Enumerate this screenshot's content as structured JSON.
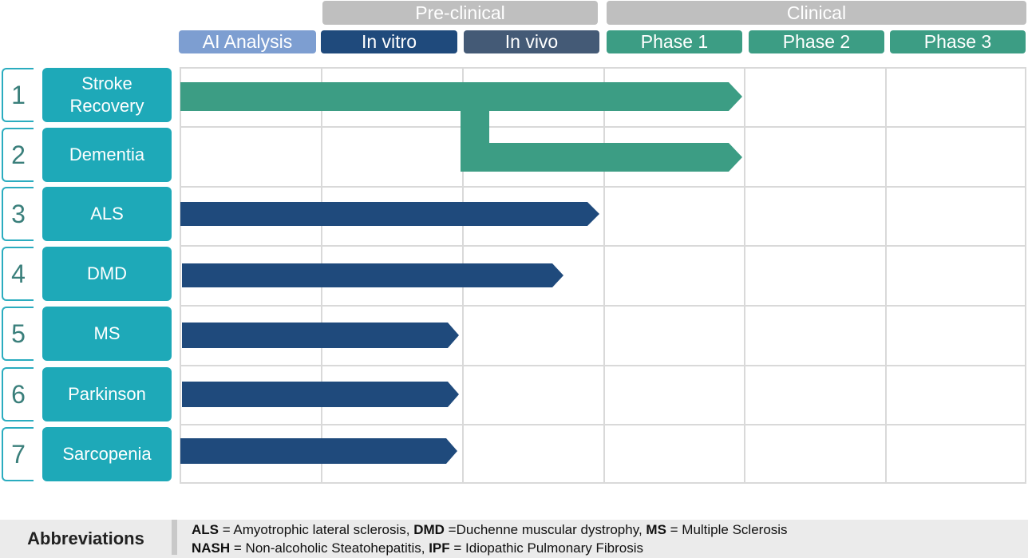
{
  "groups": {
    "preclinical": "Pre-clinical",
    "clinical": "Clinical"
  },
  "phases": [
    "AI Analysis",
    "In vitro",
    "In vivo",
    "Phase 1",
    "Phase 2",
    "Phase 3"
  ],
  "colors": {
    "ai_analysis": "#7d9ed1",
    "in_vitro": "#1f4a7c",
    "in_vivo": "#445a76",
    "clinical_phase": "#3c9d84",
    "group_header": "#bfbfbf",
    "row_label": "#1ea9b8",
    "green_bar": "#3c9d84",
    "blue_bar": "#1f4a7c"
  },
  "rows": [
    {
      "number": "1",
      "label_line1": "Stroke",
      "label_line2": "Recovery",
      "bar_color": "green",
      "end_position": "Phase 1 (end)"
    },
    {
      "number": "2",
      "label_line1": "Dementia",
      "label_line2": "",
      "bar_color": "green",
      "end_position": "Phase 1 (end)"
    },
    {
      "number": "3",
      "label_line1": "ALS",
      "label_line2": "",
      "bar_color": "blue",
      "end_position": "In vivo (end)"
    },
    {
      "number": "4",
      "label_line1": "DMD",
      "label_line2": "",
      "bar_color": "blue",
      "end_position": "In vivo (~70%)"
    },
    {
      "number": "5",
      "label_line1": "MS",
      "label_line2": "",
      "bar_color": "blue",
      "end_position": "In vitro (end)"
    },
    {
      "number": "6",
      "label_line1": "Parkinson",
      "label_line2": "",
      "bar_color": "blue",
      "end_position": "In vitro (end)"
    },
    {
      "number": "7",
      "label_line1": "Sarcopenia",
      "label_line2": "",
      "bar_color": "blue",
      "end_position": "In vitro (end)"
    }
  ],
  "abbreviations": {
    "title": "Abbreviations",
    "line1": [
      {
        "term": "ALS",
        "def": " = Amyotrophic lateral sclerosis, "
      },
      {
        "term": "DMD",
        "def": " =Duchenne muscular dystrophy, "
      },
      {
        "term": "MS",
        "def": " = Multiple Sclerosis"
      }
    ],
    "line2": [
      {
        "term": "NASH",
        "def": " = Non-alcoholic Steatohepatitis, "
      },
      {
        "term": "IPF",
        "def": " = Idiopathic Pulmonary Fibrosis"
      }
    ]
  }
}
